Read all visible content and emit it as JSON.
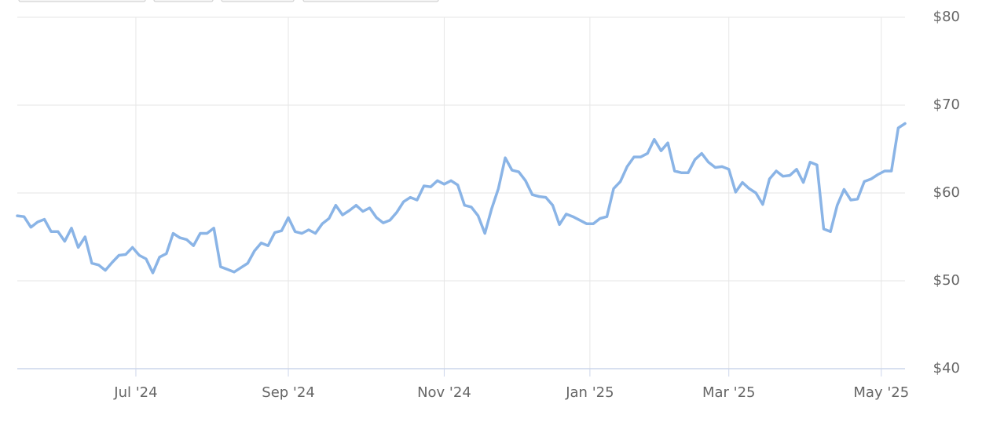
{
  "chart_data": {
    "type": "line",
    "values": [
      57.4,
      57.3,
      56.1,
      56.7,
      57.0,
      55.6,
      55.6,
      54.5,
      56.0,
      53.8,
      55.0,
      52.0,
      51.8,
      51.2,
      52.1,
      52.9,
      53.0,
      53.8,
      52.9,
      52.5,
      50.9,
      52.7,
      53.1,
      55.4,
      54.9,
      54.7,
      54.0,
      55.4,
      55.4,
      56.0,
      51.6,
      51.3,
      51.0,
      51.5,
      52.0,
      53.4,
      54.3,
      54.0,
      55.5,
      55.7,
      57.2,
      55.6,
      55.4,
      55.8,
      55.4,
      56.5,
      57.1,
      58.6,
      57.5,
      58.0,
      58.6,
      57.9,
      58.3,
      57.2,
      56.6,
      56.9,
      57.8,
      59.0,
      59.5,
      59.2,
      60.8,
      60.7,
      61.4,
      61.0,
      61.4,
      60.9,
      58.6,
      58.4,
      57.4,
      55.4,
      58.2,
      60.5,
      64.0,
      62.6,
      62.4,
      61.4,
      59.8,
      59.6,
      59.5,
      58.6,
      56.4,
      57.6,
      57.3,
      56.9,
      56.5,
      56.5,
      57.1,
      57.3,
      60.5,
      61.3,
      63.0,
      64.1,
      64.1,
      64.5,
      66.1,
      64.8,
      65.7,
      62.5,
      62.3,
      62.3,
      63.8,
      64.5,
      63.5,
      62.9,
      63.0,
      62.7,
      60.1,
      61.2,
      60.5,
      60.0,
      58.7,
      61.6,
      62.5,
      61.9,
      62.0,
      62.7,
      61.2,
      63.5,
      63.2,
      55.9,
      55.6,
      58.6,
      60.4,
      59.2,
      59.3,
      61.3,
      61.6,
      62.1,
      62.5,
      62.5,
      67.4,
      67.9
    ],
    "color": "#8ab4e6",
    "xlim": [
      0,
      131
    ],
    "xticks": [
      {
        "value": 17.5,
        "label": "Jul '24"
      },
      {
        "value": 40,
        "label": "Sep '24"
      },
      {
        "value": 63,
        "label": "Nov '24"
      },
      {
        "value": 84.5,
        "label": "Jan '25"
      },
      {
        "value": 105,
        "label": "Mar '25"
      },
      {
        "value": 127.5,
        "label": "May '25"
      }
    ],
    "ylim": [
      40,
      80
    ],
    "yticks": [
      {
        "value": 40,
        "label": "$40"
      },
      {
        "value": 50,
        "label": "$50"
      },
      {
        "value": 60,
        "label": "$60"
      },
      {
        "value": 70,
        "label": "$70"
      },
      {
        "value": 80,
        "label": "$80"
      }
    ],
    "grid": true
  }
}
